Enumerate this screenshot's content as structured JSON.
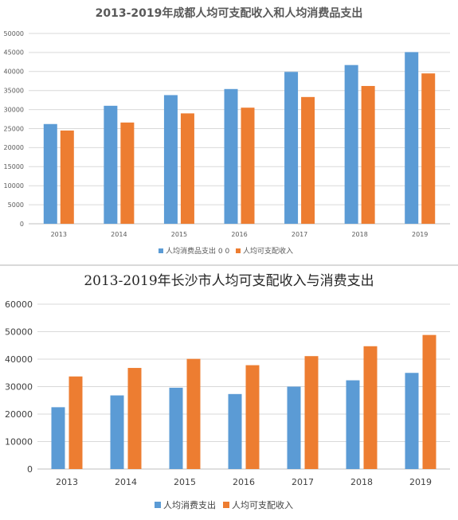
{
  "chart_data": [
    {
      "type": "bar",
      "title": "2013-2019年成都人均可支配收入和人均消费品支出",
      "categories": [
        "2013",
        "2014",
        "2015",
        "2016",
        "2017",
        "2018",
        "2019"
      ],
      "series": [
        {
          "name": "人均消费品支出 0 0",
          "color": "#5b9bd5",
          "values": [
            26200,
            31000,
            33800,
            35400,
            39900,
            41700,
            45100
          ]
        },
        {
          "name": "人均可支配收入",
          "color": "#ed7d31",
          "values": [
            24500,
            26600,
            29000,
            30500,
            33300,
            36200,
            39500
          ]
        }
      ],
      "ylim": [
        0,
        50000
      ],
      "yticks": [
        0,
        5000,
        10000,
        15000,
        20000,
        25000,
        30000,
        35000,
        40000,
        45000,
        50000
      ],
      "grid": true,
      "legend": "bottom"
    },
    {
      "type": "bar",
      "title": "2013-2019年长沙市人均可支配收入与消费支出",
      "categories": [
        "2013",
        "2014",
        "2015",
        "2016",
        "2017",
        "2018",
        "2019"
      ],
      "series": [
        {
          "name": "人均消费支出",
          "color": "#5b9bd5",
          "values": [
            22500,
            26800,
            29600,
            27300,
            30000,
            32300,
            35000
          ]
        },
        {
          "name": "人均可支配收入",
          "color": "#ed7d31",
          "values": [
            33700,
            36800,
            40100,
            37800,
            41100,
            44700,
            48800
          ]
        }
      ],
      "ylim": [
        0,
        60000
      ],
      "yticks": [
        0,
        10000,
        20000,
        30000,
        40000,
        50000,
        60000
      ],
      "grid": true,
      "legend": "bottom"
    }
  ]
}
